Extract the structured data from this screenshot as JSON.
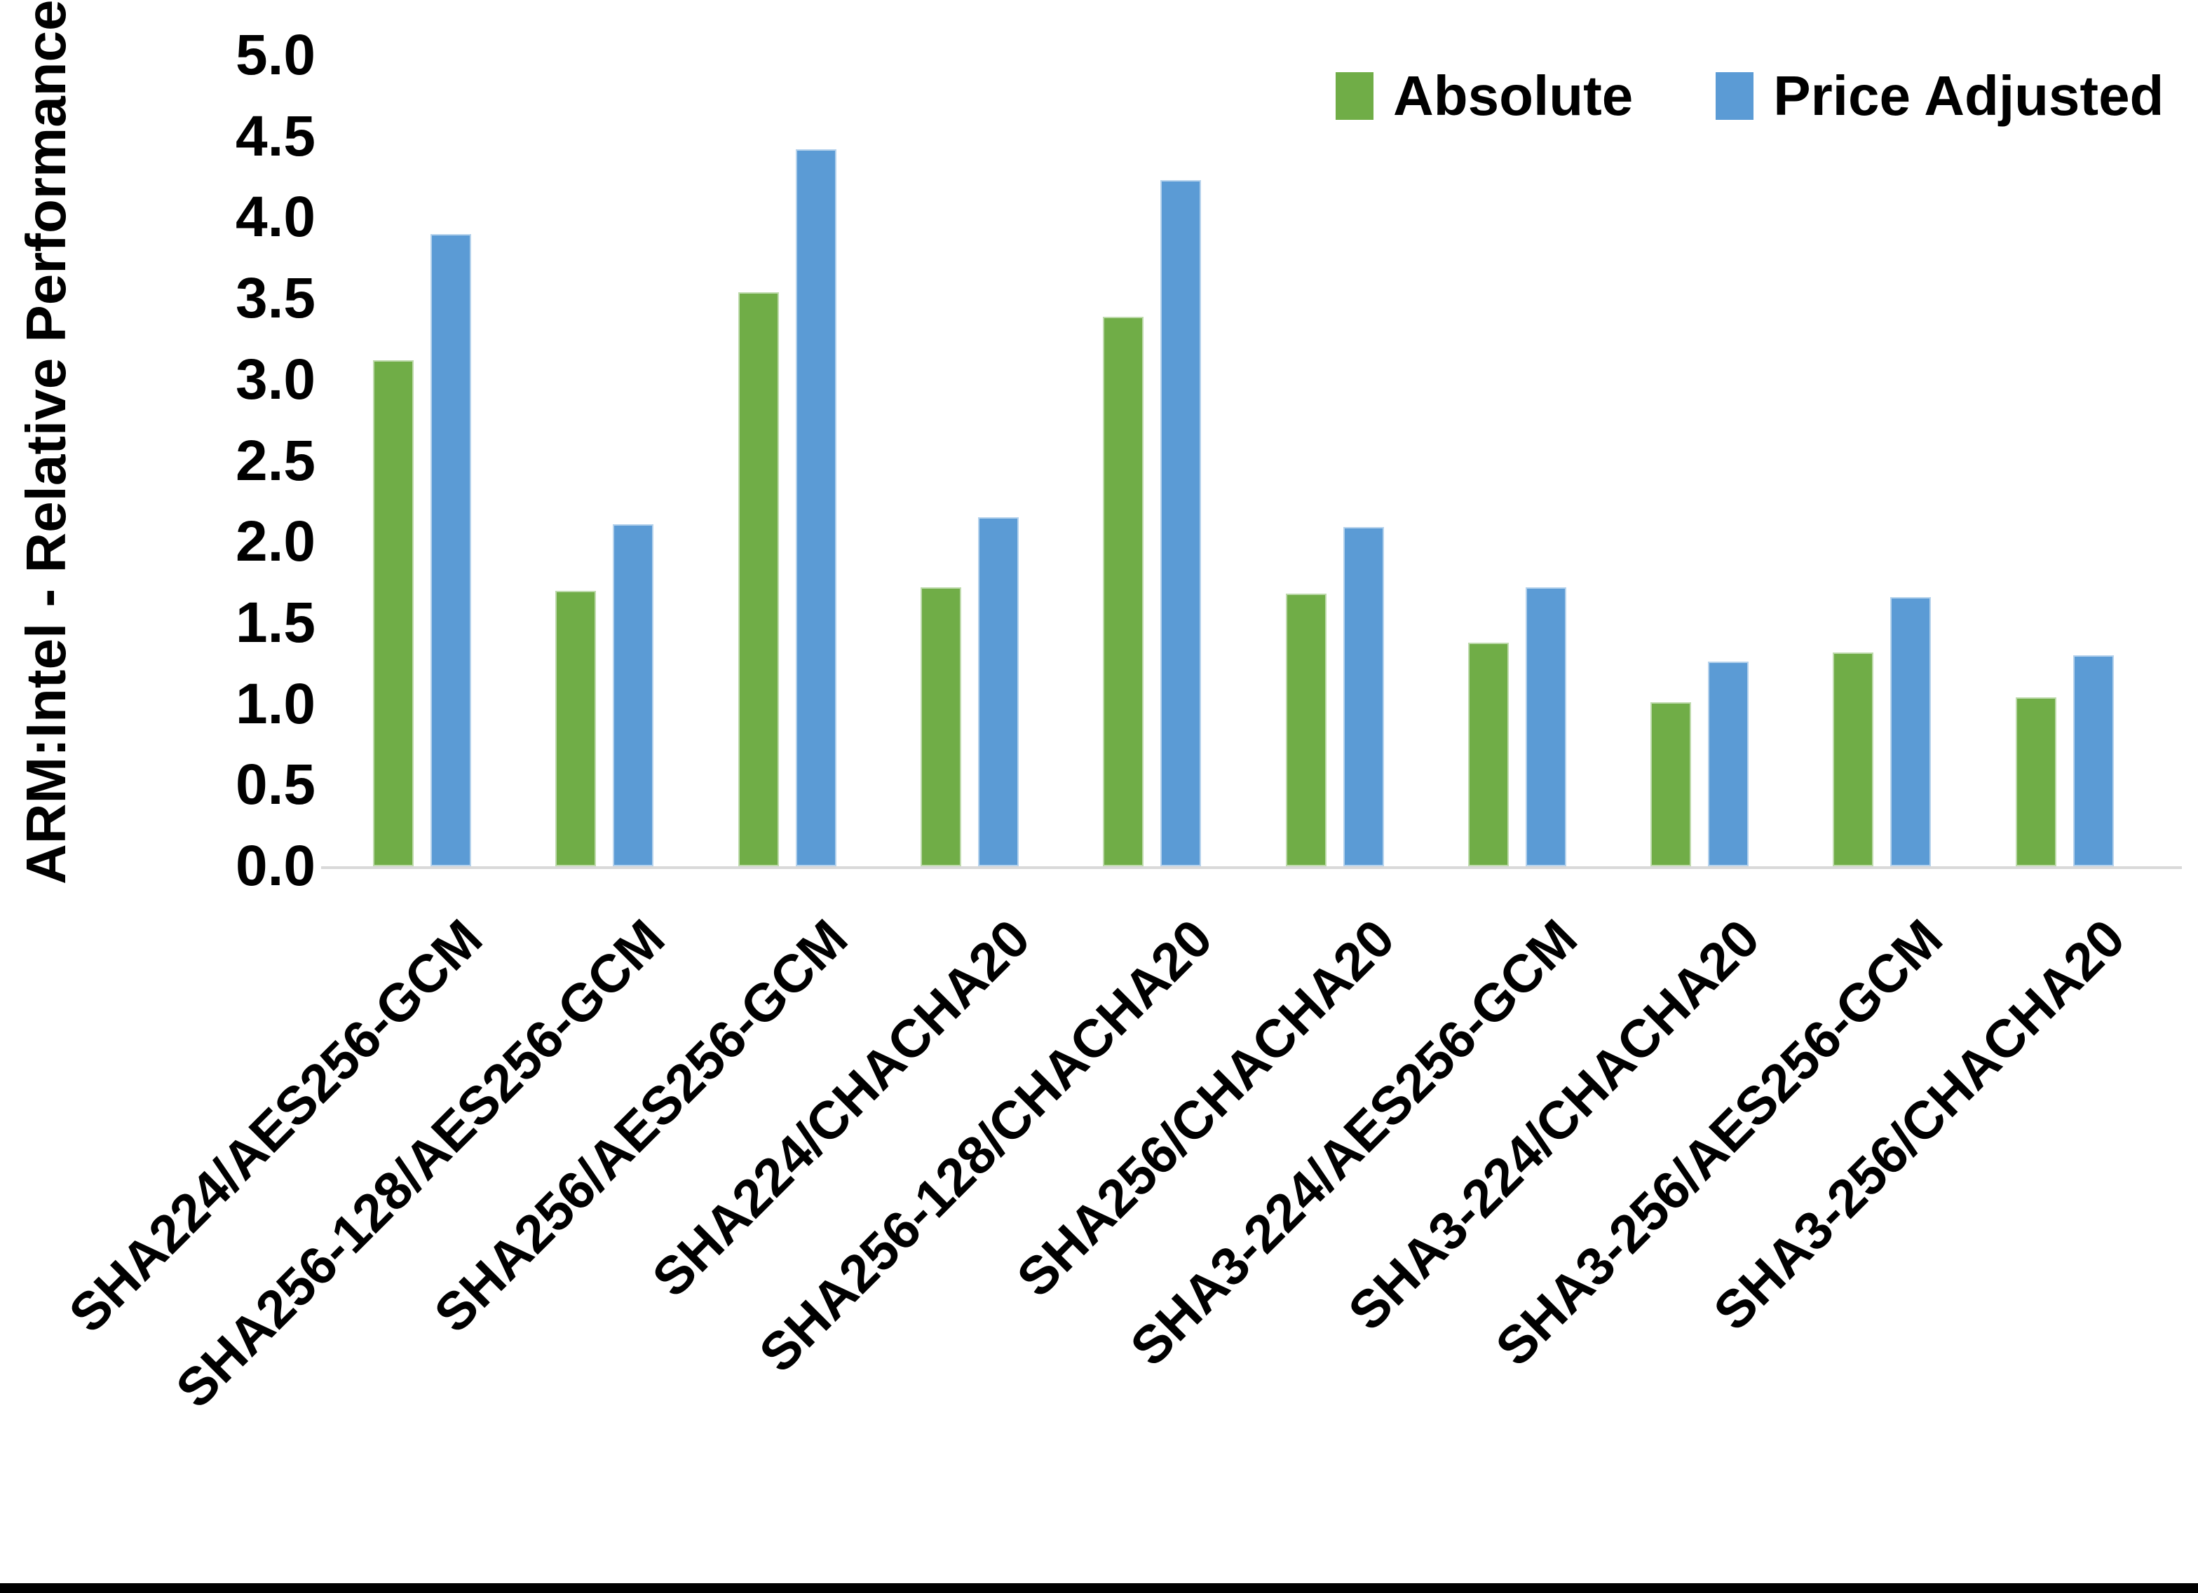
{
  "chart_data": {
    "type": "bar",
    "title": "",
    "ylabel": "ARM:Intel - Relative Performance",
    "xlabel": "",
    "categories": [
      "SHA224/AES256-GCM",
      "SHA256-128/AES256-GCM",
      "SHA256/AES256-GCM",
      "SHA224/CHACHA20",
      "SHA256-128/CHACHA20",
      "SHA256/CHACHA20",
      "SHA3-224/AES256-GCM",
      "SHA3-224/CHACHA20",
      "SHA3-256/AES256-GCM",
      "SHA3-256/CHACHA20"
    ],
    "series": [
      {
        "name": "Absolute",
        "color": "#70AD47",
        "values": [
          3.12,
          1.7,
          3.54,
          1.72,
          3.39,
          1.68,
          1.38,
          1.01,
          1.32,
          1.04
        ]
      },
      {
        "name": "Price Adjusted",
        "color": "#5B9BD5",
        "values": [
          3.9,
          2.11,
          4.42,
          2.15,
          4.23,
          2.09,
          1.72,
          1.26,
          1.66,
          1.3
        ]
      }
    ],
    "ylim": [
      0,
      5
    ],
    "ytick_step": 0.5,
    "ytick_labels": [
      "0.0",
      "0.5",
      "1.0",
      "1.5",
      "2.0",
      "2.5",
      "3.0",
      "3.5",
      "4.0",
      "4.5",
      "5.0"
    ],
    "grid": "off",
    "legend_position": "top-right",
    "axis_line_color": "#D9D9D9",
    "text_color": "#000000"
  }
}
